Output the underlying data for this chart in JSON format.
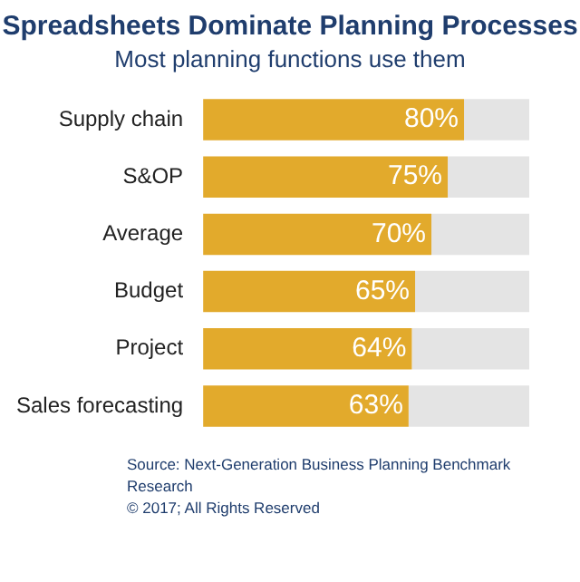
{
  "chart_data": {
    "type": "bar",
    "orientation": "horizontal",
    "stacked": true,
    "title": "Spreadsheets Dominate Planning Processes",
    "subtitle": "Most planning functions use them",
    "categories": [
      "Supply chain",
      "S&OP",
      "Average",
      "Budget",
      "Project",
      "Sales forecasting"
    ],
    "series": [
      {
        "color": "#e2aa2c",
        "values": [
          80,
          75,
          70,
          65,
          64,
          63
        ],
        "value_labels": [
          "80%",
          "75%",
          "70%",
          "65%",
          "64%",
          "63%"
        ]
      },
      {
        "color": "#e4e4e4",
        "values": [
          20,
          25,
          30,
          35,
          36,
          37
        ]
      }
    ],
    "annotations": [
      "Source: Next-Generation Business Planning Benchmark Research",
      "© 2017; All Rights Reserved"
    ],
    "grid": false,
    "legend": false
  }
}
